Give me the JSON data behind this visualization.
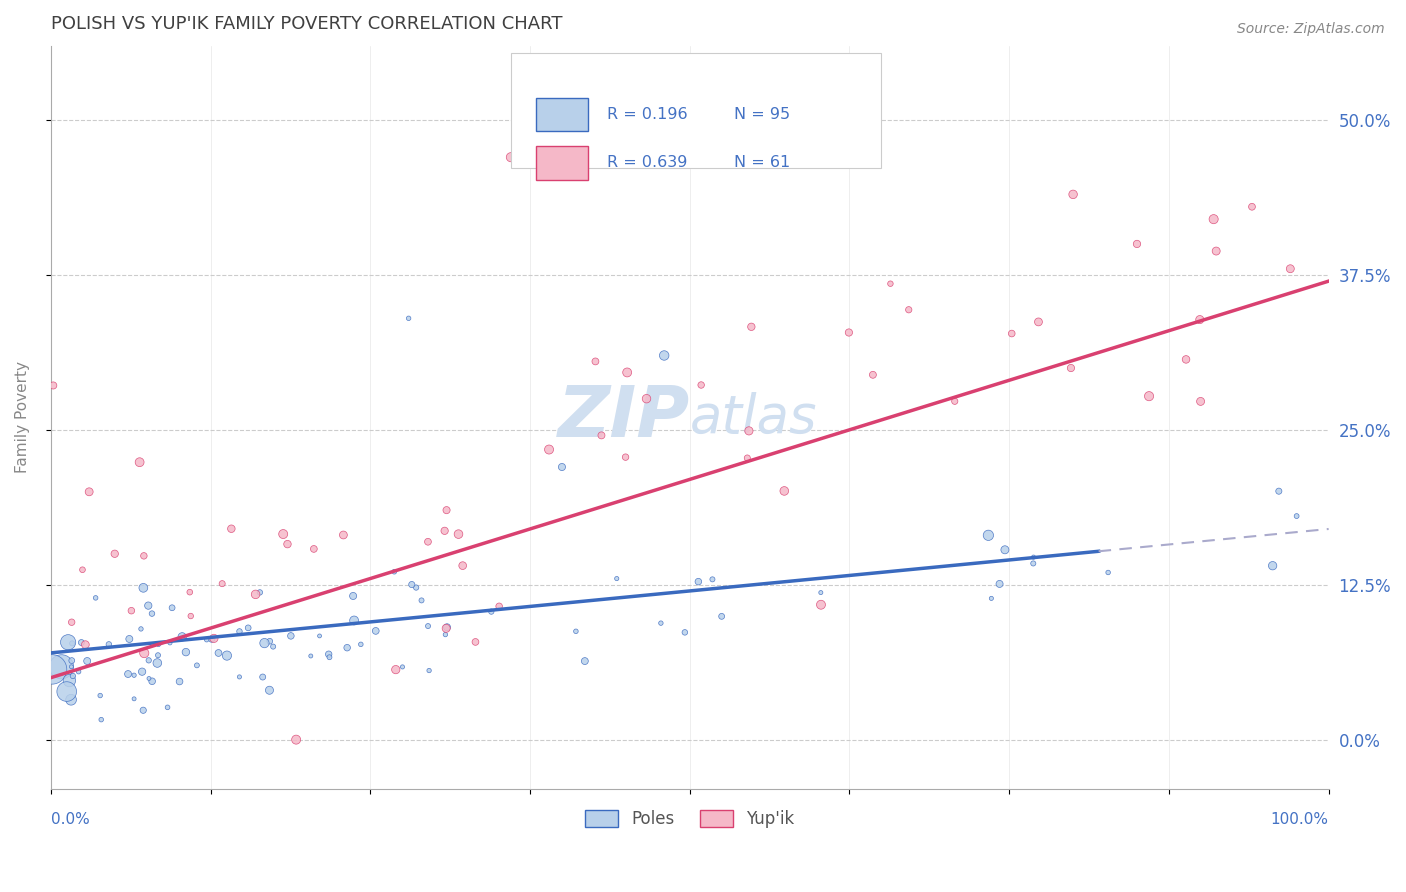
{
  "title": "POLISH VS YUP'IK FAMILY POVERTY CORRELATION CHART",
  "source": "Source: ZipAtlas.com",
  "ylabel": "Family Poverty",
  "ytick_labels": [
    "0.0%",
    "12.5%",
    "25.0%",
    "37.5%",
    "50.0%"
  ],
  "ytick_values": [
    0.0,
    0.125,
    0.25,
    0.375,
    0.5
  ],
  "xlim": [
    0.0,
    1.0
  ],
  "ylim": [
    -0.04,
    0.56
  ],
  "legend_r_poles": "R = 0.196",
  "legend_n_poles": "N = 95",
  "legend_r_yupik": "R = 0.639",
  "legend_n_yupik": "N = 61",
  "color_poles": "#b8d0ea",
  "color_yupik": "#f5b8c8",
  "line_color_poles": "#3a6abf",
  "line_color_yupik": "#d94070",
  "dashed_line_color": "#aaaacc",
  "background_color": "#ffffff",
  "title_color": "#404040",
  "source_color": "#888888",
  "tick_label_color": "#4472c4",
  "ylabel_color": "#888888",
  "watermark_color": "#d0dff0",
  "watermark": "ZIPatlas"
}
